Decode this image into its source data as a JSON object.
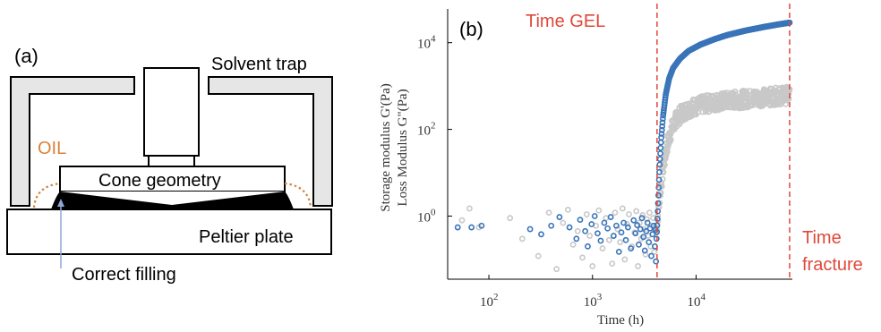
{
  "panel_a": {
    "label": "(a)",
    "solvent_trap": "Solvent trap",
    "oil": "OIL",
    "cone_geometry": "Cone geometry",
    "peltier_plate": "Peltier plate",
    "correct_filling": "Correct filling",
    "colors": {
      "oil": "#d9823b",
      "arrow": "#8fa8d8",
      "trap_fill": "#e6e6e6",
      "sample": "#000000"
    }
  },
  "panel_b": {
    "label": "(b)",
    "time_gel": "Time GEL",
    "time_fracture_line1": "Time",
    "time_fracture_line2": "fracture",
    "colors": {
      "storage": "#3a74b9",
      "loss": "#c8c8c8",
      "marker_line": "#e0483a"
    }
  },
  "chart_data": {
    "type": "scatter",
    "xscale": "log",
    "yscale": "log",
    "xlim": [
      40,
      85000
    ],
    "ylim": [
      0.035,
      60000
    ],
    "xlabel": "Time (h)",
    "ylabel_line1": "Storage modulus G'(Pa)",
    "ylabel_line2": "Loss Modulus G\"(Pa)",
    "x_ticks": [
      {
        "value": 100,
        "mantissa": "10",
        "exponent": "2"
      },
      {
        "value": 1000,
        "mantissa": "10",
        "exponent": "3"
      },
      {
        "value": 10000,
        "mantissa": "10",
        "exponent": "4"
      }
    ],
    "y_ticks": [
      {
        "value": 1,
        "mantissa": "10",
        "exponent": "0"
      },
      {
        "value": 100,
        "mantissa": "10",
        "exponent": "2"
      },
      {
        "value": 10000,
        "mantissa": "10",
        "exponent": "4"
      }
    ],
    "vertical_markers": [
      {
        "name": "Time GEL",
        "x": 4200
      },
      {
        "name": "Time fracture",
        "x": 80000
      }
    ],
    "series": [
      {
        "color": "#3a74b9",
        "noise_points": [
          [
            50,
            0.55
          ],
          [
            68,
            0.55
          ],
          [
            85,
            0.6
          ],
          [
            250,
            0.5
          ],
          [
            320,
            0.38
          ],
          [
            400,
            0.6
          ],
          [
            480,
            0.95
          ],
          [
            600,
            0.55
          ],
          [
            700,
            0.3
          ],
          [
            760,
            0.82
          ],
          [
            850,
            0.45
          ],
          [
            900,
            0.2
          ],
          [
            980,
            0.65
          ],
          [
            1050,
            1.0
          ],
          [
            1120,
            0.4
          ],
          [
            1200,
            0.27
          ],
          [
            1300,
            0.7
          ],
          [
            1400,
            0.52
          ],
          [
            1500,
            0.95
          ],
          [
            1600,
            0.35
          ],
          [
            1700,
            0.6
          ],
          [
            1800,
            0.15
          ],
          [
            1900,
            0.42
          ],
          [
            2000,
            0.7
          ],
          [
            2100,
            0.28
          ],
          [
            2200,
            0.55
          ],
          [
            2350,
            0.18
          ],
          [
            2500,
            0.8
          ],
          [
            2600,
            0.4
          ],
          [
            2700,
            0.62
          ],
          [
            2800,
            0.22
          ],
          [
            2900,
            0.5
          ],
          [
            3000,
            0.9
          ],
          [
            3100,
            0.33
          ],
          [
            3200,
            0.16
          ],
          [
            3300,
            0.45
          ],
          [
            3400,
            0.7
          ],
          [
            3500,
            0.25
          ],
          [
            3600,
            0.52
          ],
          [
            3700,
            0.12
          ],
          [
            3800,
            0.38
          ],
          [
            3900,
            0.6
          ],
          [
            4000,
            0.2
          ],
          [
            4050,
            0.48
          ],
          [
            4100,
            0.09
          ]
        ],
        "curve": [
          [
            4150,
            0.3
          ],
          [
            4250,
            1.0
          ],
          [
            4350,
            4
          ],
          [
            4450,
            15
          ],
          [
            4600,
            60
          ],
          [
            4800,
            200
          ],
          [
            5100,
            650
          ],
          [
            5500,
            1500
          ],
          [
            6000,
            2600
          ],
          [
            7000,
            4300
          ],
          [
            8500,
            6500
          ],
          [
            11000,
            9000
          ],
          [
            15000,
            12000
          ],
          [
            20000,
            15000
          ],
          [
            30000,
            19000
          ],
          [
            45000,
            23000
          ],
          [
            60000,
            26000
          ],
          [
            80000,
            29000
          ]
        ]
      },
      {
        "color": "#c8c8c8",
        "noise_points": [
          [
            55,
            0.8
          ],
          [
            65,
            1.5
          ],
          [
            80,
            0.55
          ],
          [
            160,
            0.9
          ],
          [
            210,
            0.3
          ],
          [
            300,
            0.12
          ],
          [
            380,
            1.2
          ],
          [
            450,
            0.06
          ],
          [
            520,
            0.7
          ],
          [
            580,
            1.4
          ],
          [
            650,
            0.22
          ],
          [
            720,
            0.45
          ],
          [
            800,
            0.11
          ],
          [
            880,
            1.1
          ],
          [
            940,
            0.35
          ],
          [
            1000,
            0.07
          ],
          [
            1080,
            0.6
          ],
          [
            1150,
            1.35
          ],
          [
            1250,
            0.18
          ],
          [
            1350,
            0.9
          ],
          [
            1450,
            0.28
          ],
          [
            1550,
            0.08
          ],
          [
            1650,
            1.2
          ],
          [
            1750,
            0.5
          ],
          [
            1850,
            0.25
          ],
          [
            1950,
            1.5
          ],
          [
            2050,
            0.1
          ],
          [
            2150,
            0.65
          ],
          [
            2250,
            1.1
          ],
          [
            2400,
            0.2
          ],
          [
            2550,
            0.42
          ],
          [
            2650,
            1.3
          ],
          [
            2750,
            0.07
          ],
          [
            2850,
            0.7
          ],
          [
            2950,
            0.3
          ],
          [
            3050,
            1.05
          ],
          [
            3150,
            0.5
          ],
          [
            3250,
            0.13
          ],
          [
            3350,
            0.85
          ],
          [
            3450,
            0.35
          ],
          [
            3550,
            1.2
          ],
          [
            3650,
            0.2
          ],
          [
            3750,
            0.6
          ],
          [
            3850,
            0.9
          ],
          [
            3950,
            0.15
          ],
          [
            4050,
            0.55
          ]
        ],
        "curve": [
          [
            4150,
            0.5
          ],
          [
            4300,
            1.2
          ],
          [
            4500,
            3.5
          ],
          [
            4800,
            12
          ],
          [
            5200,
            40
          ],
          [
            5800,
            100
          ],
          [
            6500,
            180
          ],
          [
            7500,
            250
          ],
          [
            9000,
            320
          ],
          [
            12000,
            380
          ],
          [
            16000,
            430
          ],
          [
            22000,
            470
          ],
          [
            30000,
            500
          ],
          [
            42000,
            540
          ],
          [
            60000,
            580
          ],
          [
            80000,
            620
          ]
        ],
        "band": 0.4
      }
    ]
  }
}
